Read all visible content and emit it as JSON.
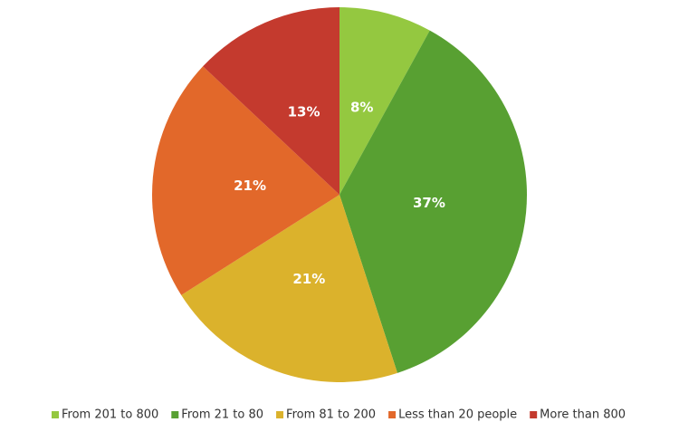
{
  "chart_data": {
    "type": "pie",
    "categories": [
      "From 201 to 800",
      "From 21 to 80",
      "From 81 to 200",
      "Less than 20 people",
      "More than 800"
    ],
    "values": [
      8,
      37,
      21,
      21,
      13
    ],
    "value_labels": [
      "8%",
      "37%",
      "21%",
      "21%",
      "13%"
    ],
    "colors": [
      "#94c840",
      "#58a032",
      "#dbb22c",
      "#e2682a",
      "#c43a2e"
    ],
    "legend": "bottom"
  }
}
